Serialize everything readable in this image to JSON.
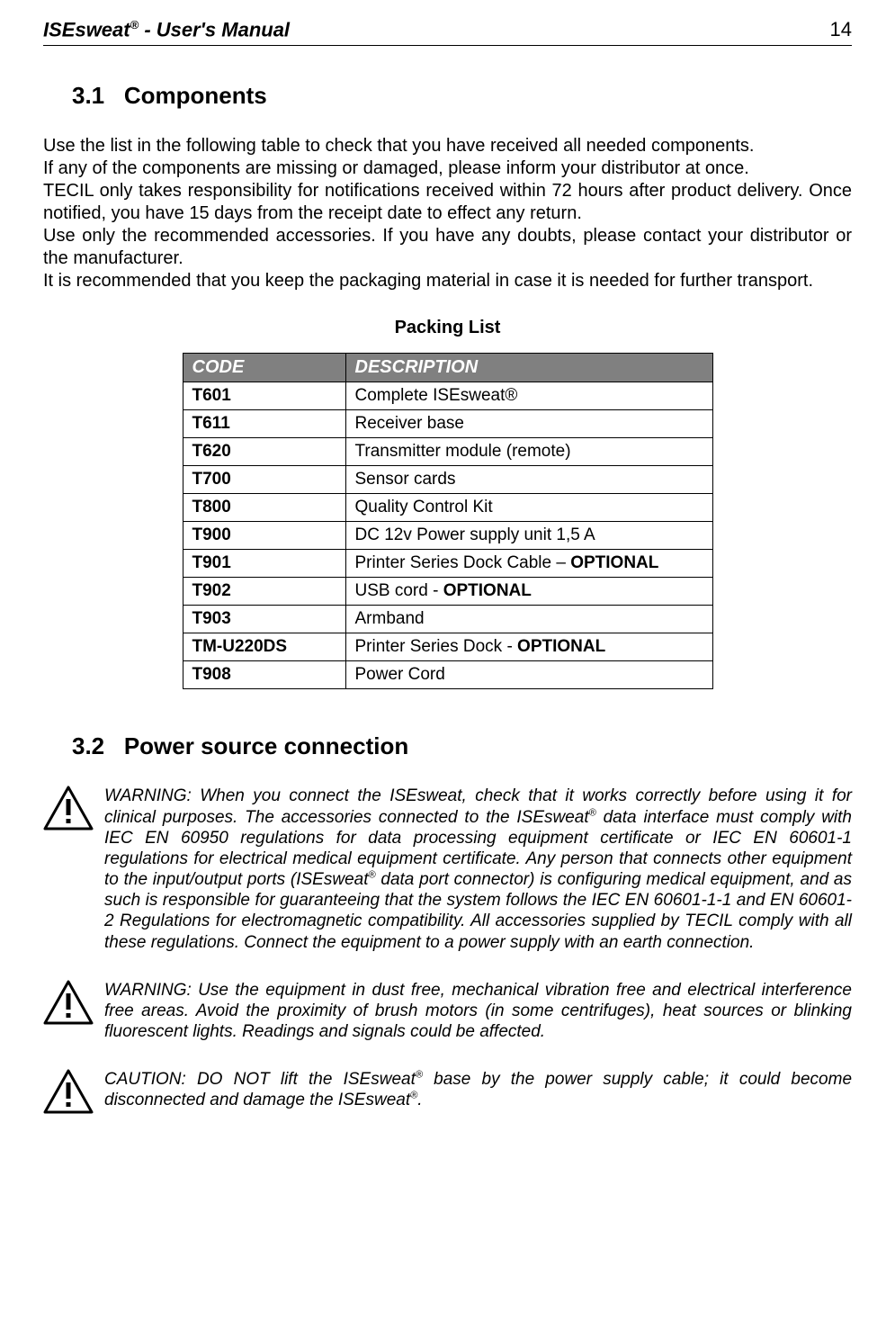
{
  "header": {
    "product": "ISEsweat",
    "reg": "®",
    "suffix": " -  User's  Manual",
    "page_number": "14"
  },
  "section_31": {
    "number": "3.1",
    "title": "Components",
    "para": "Use the list in the following table to check that you have received all needed components.\nIf any of the components are missing or damaged, please inform your distributor at once.\nTECIL only takes responsibility for notifications received within 72 hours after product delivery. Once notified, you have 15 days from the receipt date to effect any return.\nUse only the recommended accessories. If you have any doubts, please contact your distributor or the manufacturer.\nIt is recommended that you keep the packaging material in case it is needed for further transport."
  },
  "packing_list": {
    "title": "Packing List",
    "columns": [
      "CODE",
      "DESCRIPTION"
    ],
    "header_bg": "#808080",
    "header_fg": "#ffffff",
    "rows": [
      {
        "code": "T601",
        "desc": "Complete ISEsweat®"
      },
      {
        "code": "T611",
        "desc": "Receiver base"
      },
      {
        "code": "T620",
        "desc": "Transmitter module (remote)"
      },
      {
        "code": "T700",
        "desc": "Sensor cards"
      },
      {
        "code": "T800",
        "desc": "Quality Control Kit"
      },
      {
        "code": "T900",
        "desc": "DC 12v Power supply unit 1,5 A"
      },
      {
        "code": "T901",
        "desc": "Printer Series Dock Cable – ",
        "optional": "OPTIONAL"
      },
      {
        "code": "T902",
        "desc": "USB cord - ",
        "optional": "OPTIONAL"
      },
      {
        "code": "T903",
        "desc": "Armband"
      },
      {
        "code": "TM-U220DS",
        "desc": "Printer Series Dock - ",
        "optional": "OPTIONAL"
      },
      {
        "code": "T908",
        "desc": "Power Cord"
      }
    ]
  },
  "section_32": {
    "number": "3.2",
    "title": "Power source connection"
  },
  "warnings": [
    {
      "pre1": "WARNING: When you connect the ISEsweat, check that it works correctly before using it for clinical purposes. The accessories connected to the ISEsweat",
      "sup1": "®",
      "mid1": " data interface must comply with IEC EN 60950 regulations for data processing equipment certificate or IEC EN 60601-1 regulations for electrical medical equipment certificate. Any person that connects other equipment to the input/output ports (ISEsweat",
      "sup2": "®",
      "mid2": " data port connector) is configuring medical equipment, and as such is responsible for guaranteeing that the system follows the IEC EN 60601-1-1 and EN 60601-2 Regulations for electromagnetic compatibility. All accessories supplied by TECIL comply with all these regulations. Connect the equipment to a power supply with an earth connection."
    },
    {
      "text": "WARNING: Use the equipment in dust free, mechanical vibration free and electrical interference free areas. Avoid the proximity of brush motors (in some centrifuges), heat sources or blinking fluorescent lights. Readings and signals could be affected."
    },
    {
      "pre1": "CAUTION: DO NOT lift the ISEsweat",
      "sup1": "®",
      "mid1": " base by the power supply cable; it could become disconnected and damage the ISEsweat",
      "sup2": "®",
      "mid2": "."
    }
  ]
}
